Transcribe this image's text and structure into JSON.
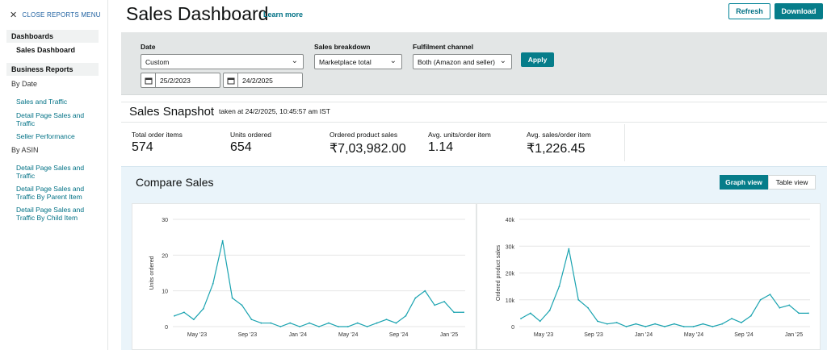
{
  "sidebar": {
    "close_label": "CLOSE REPORTS MENU",
    "close_icon": "close-icon",
    "section_dashboards": "Dashboards",
    "active_item": "Sales Dashboard",
    "section_business": "Business Reports",
    "by_date": "By Date",
    "date_links": [
      "Sales and Traffic",
      "Detail Page Sales and Traffic",
      "Seller Performance"
    ],
    "by_asin": "By ASIN",
    "asin_links": [
      "Detail Page Sales and Traffic",
      "Detail Page Sales and Traffic By Parent Item",
      "Detail Page Sales and Traffic By Child Item"
    ]
  },
  "header": {
    "title": "Sales Dashboard",
    "learn_more": "Learn more",
    "refresh": "Refresh",
    "download": "Download"
  },
  "filters": {
    "date_label": "Date",
    "date_value": "Custom",
    "start_date": "25/2/2023",
    "end_date": "24/2/2025",
    "breakdown_label": "Sales breakdown",
    "breakdown_value": "Marketplace total",
    "channel_label": "Fulfilment channel",
    "channel_value": "Both (Amazon and seller)",
    "apply": "Apply"
  },
  "snapshot": {
    "title": "Sales Snapshot",
    "timestamp": "taken at 24/2/2025, 10:45:57 am IST",
    "metrics": [
      {
        "label": "Total order items",
        "value": "574"
      },
      {
        "label": "Units ordered",
        "value": "654"
      },
      {
        "label": "Ordered product sales",
        "value": "₹7,03,982.00"
      },
      {
        "label": "Avg. units/order item",
        "value": "1.14"
      },
      {
        "label": "Avg. sales/order item",
        "value": "₹1,226.45"
      }
    ]
  },
  "compare": {
    "title": "Compare Sales",
    "graph_view": "Graph view",
    "table_view": "Table view"
  },
  "colors": {
    "accent": "#067d8a",
    "line": "#1aa3b0",
    "link": "#007185"
  },
  "chart_data": [
    {
      "type": "line",
      "ylabel": "Units ordered",
      "ylim": [
        0,
        30
      ],
      "yticks": [
        "0",
        "10",
        "20",
        "30"
      ],
      "xticks": [
        "May '23",
        "Sep '23",
        "Jan '24",
        "May '24",
        "Sep '24",
        "Jan '25"
      ],
      "x": [
        "Feb '23",
        "Mar '23",
        "Apr '23",
        "Apr '23",
        "May '23",
        "May '23",
        "Jun '23",
        "Jun '23",
        "Jul '23",
        "Aug '23",
        "Sep '23",
        "Oct '23",
        "Nov '23",
        "Dec '23",
        "Jan '24",
        "Feb '24",
        "Mar '24",
        "Apr '24",
        "May '24",
        "Jun '24",
        "Jul '24",
        "Aug '24",
        "Sep '24",
        "Oct '24",
        "Nov '24",
        "Nov '24",
        "Dec '24",
        "Dec '24",
        "Jan '25",
        "Jan '25",
        "Feb '25"
      ],
      "values": [
        3,
        4,
        2,
        5,
        12,
        24,
        8,
        6,
        2,
        1,
        1,
        0,
        1,
        0,
        1,
        0,
        1,
        0,
        0,
        1,
        0,
        1,
        2,
        1,
        3,
        8,
        10,
        6,
        7,
        4,
        4
      ]
    },
    {
      "type": "line",
      "ylabel": "Ordered product sales",
      "ylim": [
        0,
        40000
      ],
      "yticks": [
        "0",
        "10k",
        "20k",
        "30k",
        "40k"
      ],
      "xticks": [
        "May '23",
        "Sep '23",
        "Jan '24",
        "May '24",
        "Sep '24",
        "Jan '25"
      ],
      "x": [
        "Feb '23",
        "Mar '23",
        "Apr '23",
        "Apr '23",
        "May '23",
        "May '23",
        "Jun '23",
        "Jun '23",
        "Jul '23",
        "Aug '23",
        "Sep '23",
        "Oct '23",
        "Nov '23",
        "Dec '23",
        "Jan '24",
        "Feb '24",
        "Mar '24",
        "Apr '24",
        "May '24",
        "Jun '24",
        "Jul '24",
        "Aug '24",
        "Sep '24",
        "Oct '24",
        "Nov '24",
        "Nov '24",
        "Dec '24",
        "Dec '24",
        "Jan '25",
        "Jan '25",
        "Feb '25"
      ],
      "values": [
        3000,
        5000,
        2000,
        6000,
        15000,
        29000,
        10000,
        7000,
        2000,
        1000,
        1500,
        0,
        1000,
        0,
        1000,
        0,
        1000,
        0,
        0,
        1000,
        0,
        1000,
        3000,
        1500,
        4000,
        10000,
        12000,
        7000,
        8000,
        5000,
        5000
      ]
    }
  ]
}
